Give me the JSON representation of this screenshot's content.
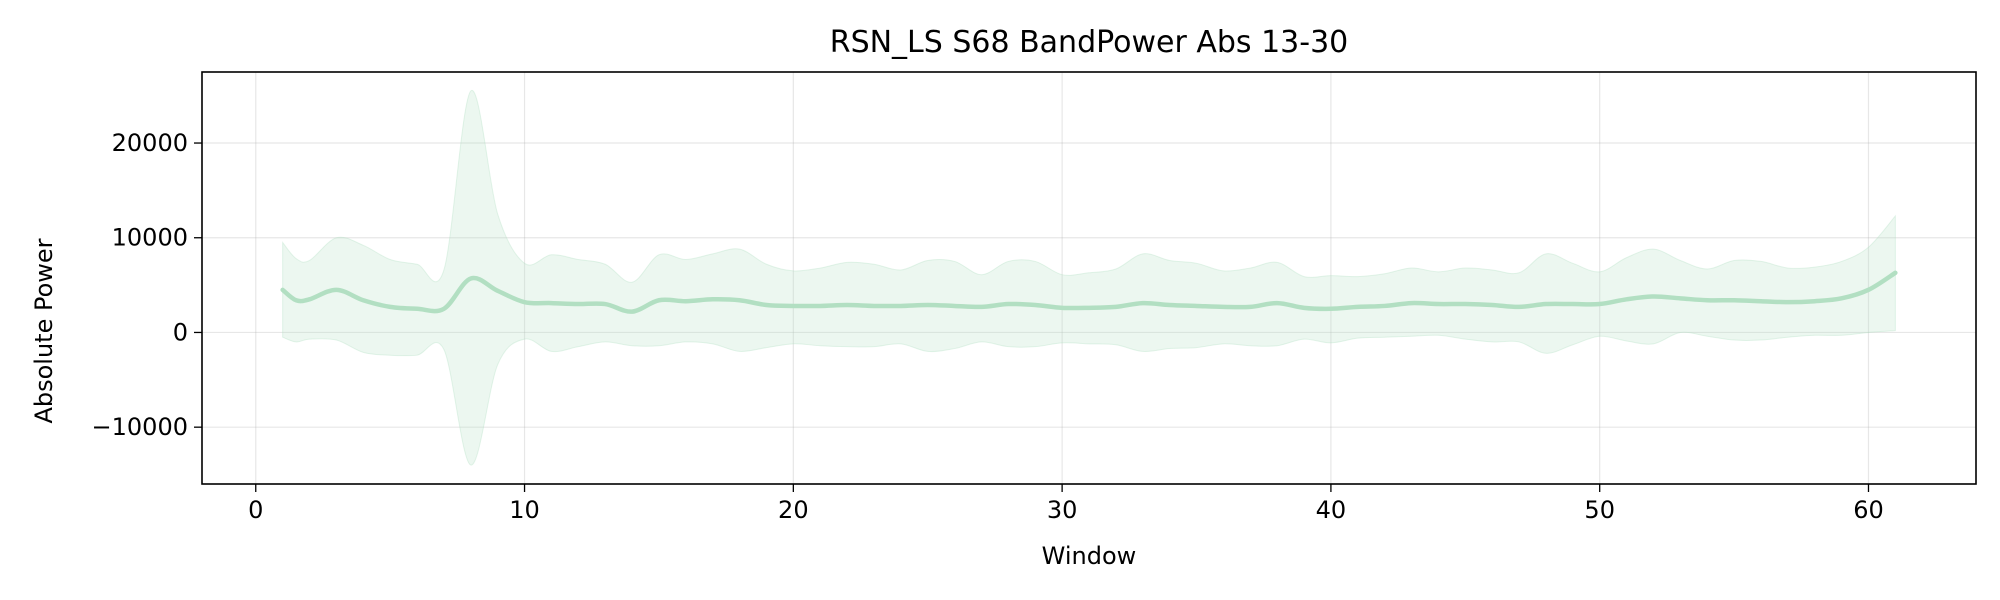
{
  "chart_data": {
    "type": "line",
    "title": "RSN_LS S68 BandPower Abs 13-30",
    "xlabel": "Window",
    "ylabel": "Absolute Power",
    "xlim": [
      -2,
      64
    ],
    "ylim": [
      -16000,
      27500
    ],
    "xticks": [
      0,
      10,
      20,
      30,
      40,
      50,
      60
    ],
    "xtick_labels": [
      "0",
      "10",
      "20",
      "30",
      "40",
      "50",
      "60"
    ],
    "yticks": [
      -10000,
      0,
      10000,
      20000
    ],
    "ytick_labels": [
      "−10000",
      "0",
      "10000",
      "20000"
    ],
    "grid": true,
    "legend": "none",
    "colors": {
      "line": "#b2dfc2",
      "band": "#b2dfc2",
      "band_opacity": 0.25
    },
    "series": [
      {
        "x": [
          1,
          1.5,
          2,
          3,
          4,
          5,
          6,
          7,
          8,
          9,
          10,
          11,
          12,
          13,
          14,
          15,
          16,
          17,
          18,
          19,
          20,
          21,
          22,
          23,
          24,
          25,
          26,
          27,
          28,
          29,
          30,
          31,
          32,
          33,
          34,
          35,
          36,
          37,
          38,
          39,
          40,
          41,
          42,
          43,
          44,
          45,
          46,
          47,
          48,
          49,
          50,
          51,
          52,
          53,
          54,
          55,
          56,
          57,
          58,
          59,
          60,
          61
        ],
        "mean": [
          4500,
          3400,
          3500,
          4500,
          3400,
          2700,
          2500,
          2500,
          5700,
          4400,
          3200,
          3100,
          3000,
          3000,
          2200,
          3400,
          3300,
          3500,
          3400,
          2900,
          2800,
          2800,
          2900,
          2800,
          2800,
          2900,
          2800,
          2700,
          3000,
          2900,
          2600,
          2600,
          2700,
          3100,
          2900,
          2800,
          2700,
          2700,
          3100,
          2600,
          2500,
          2700,
          2800,
          3100,
          3000,
          3000,
          2900,
          2700,
          3000,
          3000,
          3000,
          3500,
          3800,
          3600,
          3400,
          3400,
          3300,
          3200,
          3300,
          3600,
          4500,
          6300
        ],
        "upper": [
          9500,
          7800,
          7600,
          10000,
          9200,
          7700,
          7200,
          6600,
          25500,
          12500,
          7300,
          8200,
          7700,
          7200,
          5300,
          8200,
          7700,
          8300,
          8800,
          7200,
          6500,
          6800,
          7400,
          7200,
          6600,
          7600,
          7500,
          6100,
          7500,
          7500,
          6100,
          6300,
          6700,
          8300,
          7600,
          7300,
          6500,
          6800,
          7400,
          5900,
          6000,
          5900,
          6200,
          6800,
          6400,
          6800,
          6600,
          6300,
          8300,
          7300,
          6400,
          7900,
          8800,
          7600,
          6700,
          7600,
          7500,
          6800,
          6900,
          7500,
          9000,
          12300
        ],
        "lower": [
          -500,
          -1000,
          -700,
          -800,
          -2100,
          -2400,
          -2400,
          -1800,
          -14000,
          -3400,
          -700,
          -2000,
          -1500,
          -1000,
          -1400,
          -1400,
          -1000,
          -1200,
          -2000,
          -1600,
          -1200,
          -1400,
          -1500,
          -1500,
          -1200,
          -2000,
          -1700,
          -1000,
          -1500,
          -1500,
          -1100,
          -1200,
          -1300,
          -2000,
          -1700,
          -1600,
          -1200,
          -1400,
          -1400,
          -700,
          -1100,
          -600,
          -500,
          -400,
          -300,
          -700,
          -1000,
          -1000,
          -2200,
          -1300,
          -400,
          -900,
          -1200,
          0,
          -400,
          -800,
          -800,
          -500,
          -300,
          -300,
          0,
          200
        ]
      }
    ]
  }
}
